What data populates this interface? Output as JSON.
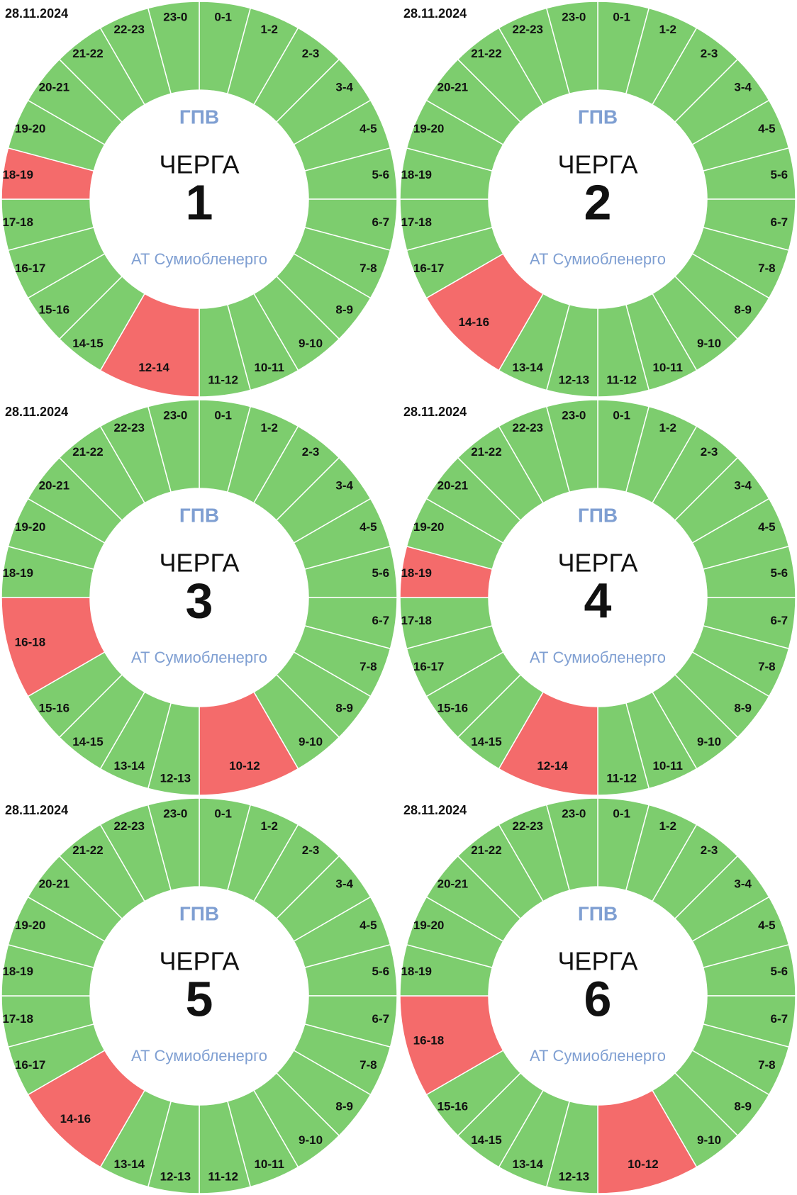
{
  "colors": {
    "power": "#7dcd6e",
    "outage": "#f46b6b",
    "accent": "#7f9fd2"
  },
  "panels": [
    {
      "date": "28.11.2024",
      "title": "ГПВ",
      "label": "ЧЕРГА",
      "number": "1",
      "company": "АТ Сумиобленерго",
      "segments": [
        {
          "label": "0-1",
          "outage": false
        },
        {
          "label": "1-2",
          "outage": false
        },
        {
          "label": "2-3",
          "outage": false
        },
        {
          "label": "3-4",
          "outage": false
        },
        {
          "label": "4-5",
          "outage": false
        },
        {
          "label": "5-6",
          "outage": false
        },
        {
          "label": "6-7",
          "outage": false
        },
        {
          "label": "7-8",
          "outage": false
        },
        {
          "label": "8-9",
          "outage": false
        },
        {
          "label": "9-10",
          "outage": false
        },
        {
          "label": "10-11",
          "outage": false
        },
        {
          "label": "11-12",
          "outage": false
        },
        {
          "label": "12-14",
          "outage": true
        },
        {
          "label": "14-15",
          "outage": false
        },
        {
          "label": "15-16",
          "outage": false
        },
        {
          "label": "16-17",
          "outage": false
        },
        {
          "label": "17-18",
          "outage": false
        },
        {
          "label": "18-19",
          "outage": true
        },
        {
          "label": "19-20",
          "outage": false
        },
        {
          "label": "20-21",
          "outage": false
        },
        {
          "label": "21-22",
          "outage": false
        },
        {
          "label": "22-23",
          "outage": false
        },
        {
          "label": "23-0",
          "outage": false
        }
      ]
    },
    {
      "date": "28.11.2024",
      "title": "ГПВ",
      "label": "ЧЕРГА",
      "number": "2",
      "company": "АТ Сумиобленерго",
      "segments": [
        {
          "label": "0-1",
          "outage": false
        },
        {
          "label": "1-2",
          "outage": false
        },
        {
          "label": "2-3",
          "outage": false
        },
        {
          "label": "3-4",
          "outage": false
        },
        {
          "label": "4-5",
          "outage": false
        },
        {
          "label": "5-6",
          "outage": false
        },
        {
          "label": "6-7",
          "outage": false
        },
        {
          "label": "7-8",
          "outage": false
        },
        {
          "label": "8-9",
          "outage": false
        },
        {
          "label": "9-10",
          "outage": false
        },
        {
          "label": "10-11",
          "outage": false
        },
        {
          "label": "11-12",
          "outage": false
        },
        {
          "label": "12-13",
          "outage": false
        },
        {
          "label": "13-14",
          "outage": false
        },
        {
          "label": "14-16",
          "outage": true
        },
        {
          "label": "16-17",
          "outage": false
        },
        {
          "label": "17-18",
          "outage": false
        },
        {
          "label": "18-19",
          "outage": false
        },
        {
          "label": "19-20",
          "outage": false
        },
        {
          "label": "20-21",
          "outage": false
        },
        {
          "label": "21-22",
          "outage": false
        },
        {
          "label": "22-23",
          "outage": false
        },
        {
          "label": "23-0",
          "outage": false
        }
      ]
    },
    {
      "date": "28.11.2024",
      "title": "ГПВ",
      "label": "ЧЕРГА",
      "number": "3",
      "company": "АТ Сумиобленерго",
      "segments": [
        {
          "label": "0-1",
          "outage": false
        },
        {
          "label": "1-2",
          "outage": false
        },
        {
          "label": "2-3",
          "outage": false
        },
        {
          "label": "3-4",
          "outage": false
        },
        {
          "label": "4-5",
          "outage": false
        },
        {
          "label": "5-6",
          "outage": false
        },
        {
          "label": "6-7",
          "outage": false
        },
        {
          "label": "7-8",
          "outage": false
        },
        {
          "label": "8-9",
          "outage": false
        },
        {
          "label": "9-10",
          "outage": false
        },
        {
          "label": "10-12",
          "outage": true
        },
        {
          "label": "12-13",
          "outage": false
        },
        {
          "label": "13-14",
          "outage": false
        },
        {
          "label": "14-15",
          "outage": false
        },
        {
          "label": "15-16",
          "outage": false
        },
        {
          "label": "16-18",
          "outage": true
        },
        {
          "label": "18-19",
          "outage": false
        },
        {
          "label": "19-20",
          "outage": false
        },
        {
          "label": "20-21",
          "outage": false
        },
        {
          "label": "21-22",
          "outage": false
        },
        {
          "label": "22-23",
          "outage": false
        },
        {
          "label": "23-0",
          "outage": false
        }
      ]
    },
    {
      "date": "28.11.2024",
      "title": "ГПВ",
      "label": "ЧЕРГА",
      "number": "4",
      "company": "АТ Сумиобленерго",
      "segments": [
        {
          "label": "0-1",
          "outage": false
        },
        {
          "label": "1-2",
          "outage": false
        },
        {
          "label": "2-3",
          "outage": false
        },
        {
          "label": "3-4",
          "outage": false
        },
        {
          "label": "4-5",
          "outage": false
        },
        {
          "label": "5-6",
          "outage": false
        },
        {
          "label": "6-7",
          "outage": false
        },
        {
          "label": "7-8",
          "outage": false
        },
        {
          "label": "8-9",
          "outage": false
        },
        {
          "label": "9-10",
          "outage": false
        },
        {
          "label": "10-11",
          "outage": false
        },
        {
          "label": "11-12",
          "outage": false
        },
        {
          "label": "12-14",
          "outage": true
        },
        {
          "label": "14-15",
          "outage": false
        },
        {
          "label": "15-16",
          "outage": false
        },
        {
          "label": "16-17",
          "outage": false
        },
        {
          "label": "17-18",
          "outage": false
        },
        {
          "label": "18-19",
          "outage": true
        },
        {
          "label": "19-20",
          "outage": false
        },
        {
          "label": "20-21",
          "outage": false
        },
        {
          "label": "21-22",
          "outage": false
        },
        {
          "label": "22-23",
          "outage": false
        },
        {
          "label": "23-0",
          "outage": false
        }
      ]
    },
    {
      "date": "28.11.2024",
      "title": "ГПВ",
      "label": "ЧЕРГА",
      "number": "5",
      "company": "АТ Сумиобленерго",
      "segments": [
        {
          "label": "0-1",
          "outage": false
        },
        {
          "label": "1-2",
          "outage": false
        },
        {
          "label": "2-3",
          "outage": false
        },
        {
          "label": "3-4",
          "outage": false
        },
        {
          "label": "4-5",
          "outage": false
        },
        {
          "label": "5-6",
          "outage": false
        },
        {
          "label": "6-7",
          "outage": false
        },
        {
          "label": "7-8",
          "outage": false
        },
        {
          "label": "8-9",
          "outage": false
        },
        {
          "label": "9-10",
          "outage": false
        },
        {
          "label": "10-11",
          "outage": false
        },
        {
          "label": "11-12",
          "outage": false
        },
        {
          "label": "12-13",
          "outage": false
        },
        {
          "label": "13-14",
          "outage": false
        },
        {
          "label": "14-16",
          "outage": true
        },
        {
          "label": "16-17",
          "outage": false
        },
        {
          "label": "17-18",
          "outage": false
        },
        {
          "label": "18-19",
          "outage": false
        },
        {
          "label": "19-20",
          "outage": false
        },
        {
          "label": "20-21",
          "outage": false
        },
        {
          "label": "21-22",
          "outage": false
        },
        {
          "label": "22-23",
          "outage": false
        },
        {
          "label": "23-0",
          "outage": false
        }
      ]
    },
    {
      "date": "28.11.2024",
      "title": "ГПВ",
      "label": "ЧЕРГА",
      "number": "6",
      "company": "АТ Сумиобленерго",
      "segments": [
        {
          "label": "0-1",
          "outage": false
        },
        {
          "label": "1-2",
          "outage": false
        },
        {
          "label": "2-3",
          "outage": false
        },
        {
          "label": "3-4",
          "outage": false
        },
        {
          "label": "4-5",
          "outage": false
        },
        {
          "label": "5-6",
          "outage": false
        },
        {
          "label": "6-7",
          "outage": false
        },
        {
          "label": "7-8",
          "outage": false
        },
        {
          "label": "8-9",
          "outage": false
        },
        {
          "label": "9-10",
          "outage": false
        },
        {
          "label": "10-12",
          "outage": true
        },
        {
          "label": "12-13",
          "outage": false
        },
        {
          "label": "13-14",
          "outage": false
        },
        {
          "label": "14-15",
          "outage": false
        },
        {
          "label": "15-16",
          "outage": false
        },
        {
          "label": "16-18",
          "outage": true
        },
        {
          "label": "18-19",
          "outage": false
        },
        {
          "label": "19-20",
          "outage": false
        },
        {
          "label": "20-21",
          "outage": false
        },
        {
          "label": "21-22",
          "outage": false
        },
        {
          "label": "22-23",
          "outage": false
        },
        {
          "label": "23-0",
          "outage": false
        }
      ]
    }
  ]
}
